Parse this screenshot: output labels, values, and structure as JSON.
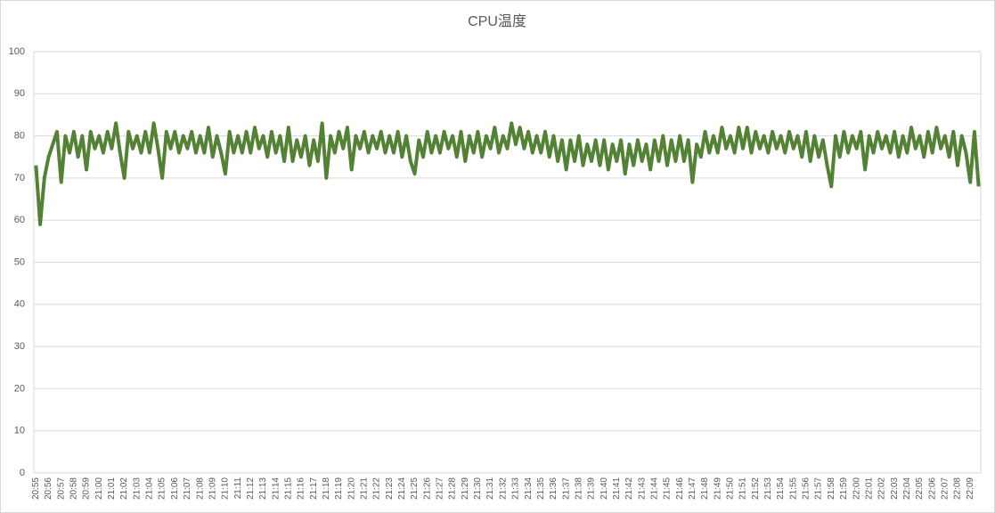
{
  "chart_data": {
    "type": "line",
    "title": "CPU温度",
    "categories": [
      "20:55",
      null,
      null,
      "20:56",
      null,
      null,
      "20:57",
      null,
      null,
      "20:58",
      null,
      null,
      "20:59",
      null,
      null,
      "21:00",
      null,
      null,
      "21:01",
      null,
      null,
      "21:02",
      null,
      null,
      "21:03",
      null,
      null,
      "21:04",
      null,
      null,
      "21:05",
      null,
      null,
      "21:06",
      null,
      null,
      "21:07",
      null,
      null,
      "21:08",
      null,
      null,
      "21:09",
      null,
      null,
      "21:10",
      null,
      null,
      "21:11",
      null,
      null,
      "21:12",
      null,
      null,
      "21:13",
      null,
      null,
      "21:14",
      null,
      null,
      "21:15",
      null,
      null,
      "21:16",
      null,
      null,
      "21:17",
      null,
      null,
      "21:18",
      null,
      null,
      "21:19",
      null,
      null,
      "21:20",
      null,
      null,
      "21:21",
      null,
      null,
      "21:22",
      null,
      null,
      "21:23",
      null,
      null,
      "21:24",
      null,
      null,
      "21:25",
      null,
      null,
      "21:26",
      null,
      null,
      "21:27",
      null,
      null,
      "21:28",
      null,
      null,
      "21:29",
      null,
      null,
      "21:30",
      null,
      null,
      "21:31",
      null,
      null,
      "21:32",
      null,
      null,
      "21:33",
      null,
      null,
      "21:34",
      null,
      null,
      "21:35",
      null,
      null,
      "21:36",
      null,
      null,
      "21:37",
      null,
      null,
      "21:38",
      null,
      null,
      "21:39",
      null,
      null,
      "21:40",
      null,
      null,
      "21:41",
      null,
      null,
      "21:42",
      null,
      null,
      "21:43",
      null,
      null,
      "21:44",
      null,
      null,
      "21:45",
      null,
      null,
      "21:46",
      null,
      null,
      "21:47",
      null,
      null,
      "21:48",
      null,
      null,
      "21:49",
      null,
      null,
      "21:50",
      null,
      null,
      "21:51",
      null,
      null,
      "21:52",
      null,
      null,
      "21:53",
      null,
      null,
      "21:54",
      null,
      null,
      "21:55",
      null,
      null,
      "21:56",
      null,
      null,
      "21:57",
      null,
      null,
      "21:58",
      null,
      null,
      "21:59",
      null,
      null,
      "22:00",
      null,
      null,
      "22:01",
      null,
      null,
      "22:02",
      null,
      null,
      "22:03",
      null,
      null,
      "22:04",
      null,
      null,
      "22:05",
      null,
      null,
      "22:06",
      null,
      null,
      "22:07",
      null,
      null,
      "22:08",
      null,
      null,
      "22:09",
      null,
      null
    ],
    "values": [
      73,
      59,
      70,
      75,
      78,
      81,
      69,
      80,
      76,
      81,
      75,
      80,
      72,
      81,
      77,
      80,
      76,
      81,
      77,
      83,
      76,
      70,
      81,
      77,
      80,
      76,
      81,
      76,
      83,
      77,
      70,
      81,
      77,
      81,
      76,
      80,
      77,
      81,
      76,
      80,
      76,
      82,
      75,
      80,
      76,
      71,
      81,
      76,
      80,
      76,
      81,
      76,
      82,
      77,
      80,
      75,
      81,
      76,
      80,
      74,
      82,
      74,
      79,
      75,
      80,
      73,
      79,
      74,
      83,
      70,
      80,
      76,
      81,
      77,
      82,
      72,
      80,
      77,
      81,
      76,
      80,
      77,
      81,
      76,
      80,
      76,
      81,
      75,
      80,
      74,
      71,
      79,
      75,
      81,
      76,
      80,
      76,
      81,
      77,
      80,
      75,
      81,
      74,
      80,
      76,
      81,
      75,
      80,
      77,
      82,
      76,
      80,
      77,
      83,
      78,
      82,
      77,
      81,
      76,
      80,
      76,
      81,
      75,
      80,
      74,
      79,
      72,
      79,
      74,
      80,
      73,
      78,
      74,
      79,
      73,
      79,
      72,
      78,
      74,
      79,
      71,
      78,
      73,
      79,
      74,
      78,
      72,
      79,
      74,
      80,
      73,
      79,
      74,
      80,
      74,
      79,
      69,
      78,
      75,
      81,
      76,
      80,
      76,
      82,
      77,
      80,
      76,
      82,
      77,
      82,
      76,
      81,
      77,
      80,
      76,
      81,
      77,
      80,
      76,
      81,
      77,
      80,
      75,
      81,
      74,
      80,
      75,
      79,
      73,
      68,
      80,
      75,
      81,
      76,
      80,
      77,
      81,
      72,
      80,
      76,
      81,
      77,
      80,
      76,
      81,
      75,
      80,
      76,
      82,
      77,
      80,
      75,
      81,
      76,
      82,
      77,
      80,
      75,
      81,
      73,
      80,
      76,
      69,
      81,
      68
    ],
    "color": "#548235",
    "ylim": [
      0,
      100
    ],
    "yticks": [
      0,
      10,
      20,
      30,
      40,
      50,
      60,
      70,
      80,
      90,
      100
    ],
    "grid": true
  }
}
